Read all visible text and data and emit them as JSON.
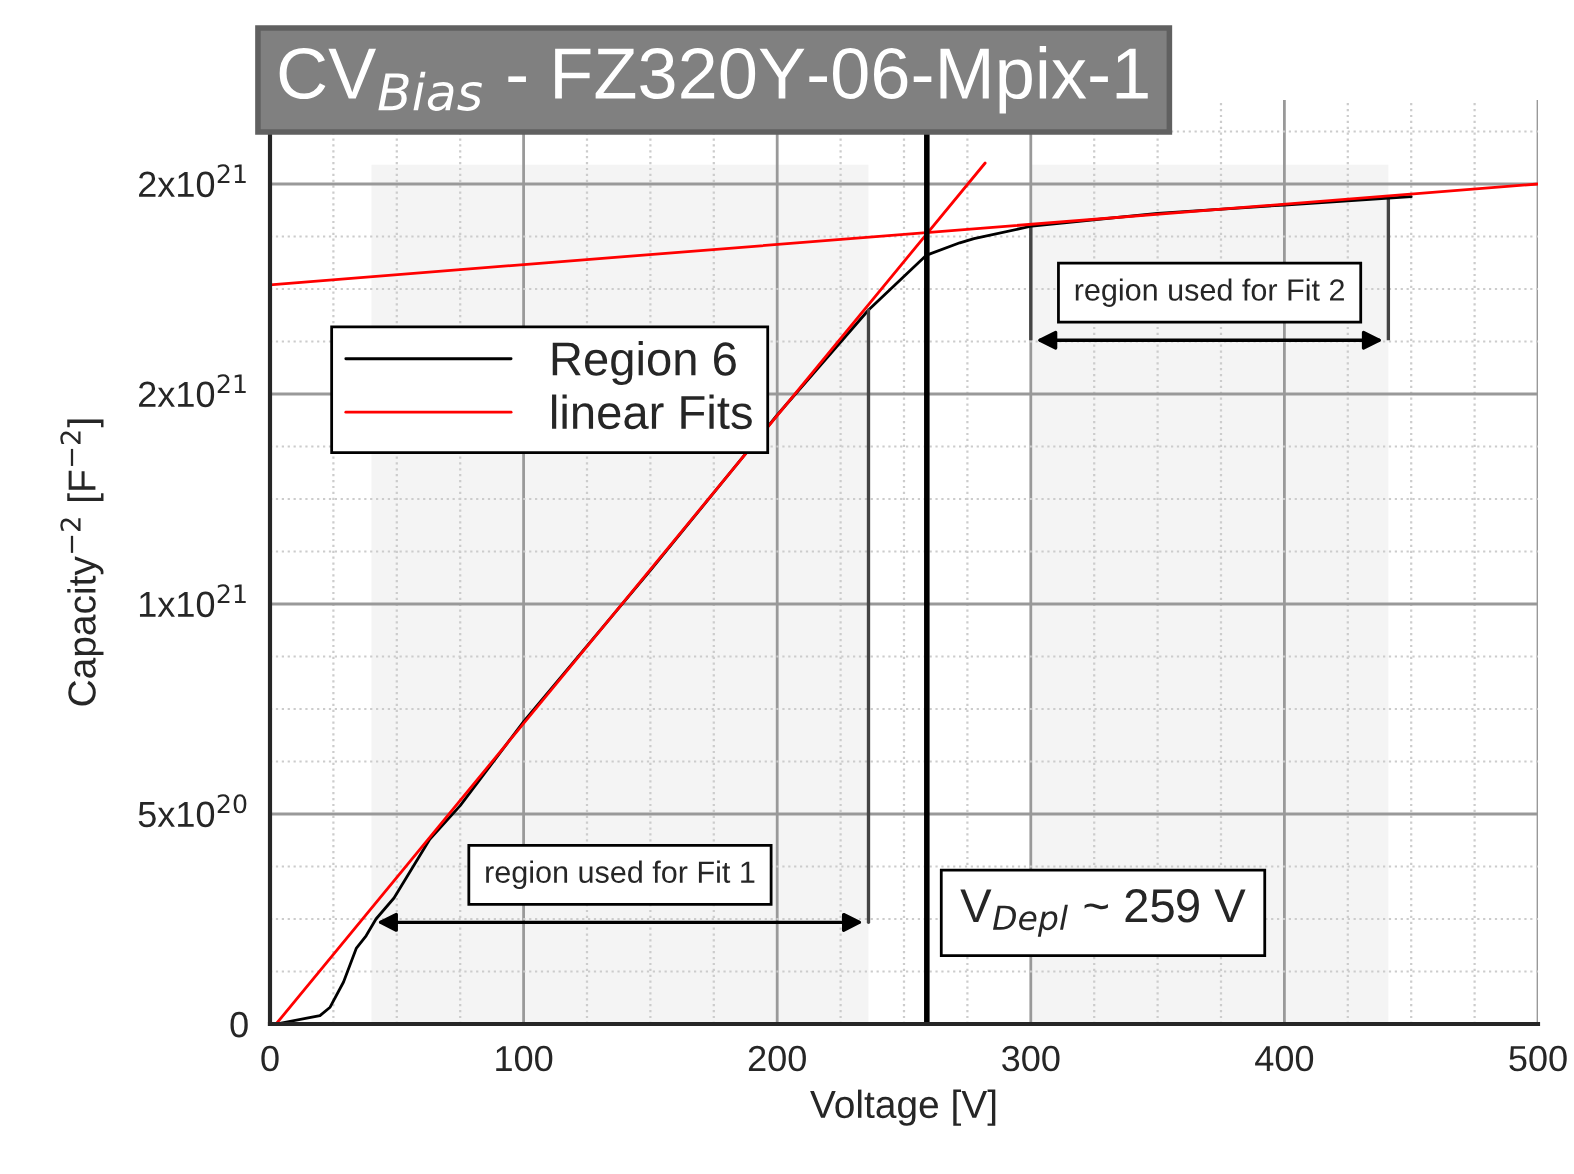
{
  "chart_data": {
    "type": "line",
    "title": "CV$_{Bias}$ - FZ320Y-06-Mpix-1",
    "xlabel": "Voltage [V]",
    "ylabel": "Capacity$^{−2}$ [F$^{−2}$]",
    "series": [
      {
        "name": "Region 6",
        "color": "#000000",
        "x": [
          2.4,
          19.7,
          23.7,
          29,
          34,
          37.9,
          41.8,
          48.9,
          63,
          75,
          100,
          150,
          200,
          236,
          258.7,
          272,
          277.6,
          300.5,
          350,
          400,
          450
        ],
        "values": [
          0,
          2e+19,
          4e+19,
          1e+20,
          1.8e+20,
          2.1e+20,
          2.5e+20,
          3e+20,
          4.4e+20,
          5.2e+20,
          7.2e+20,
          1.08e+21,
          1.45e+21,
          1.7e+21,
          1.83e+21,
          1.86e+21,
          1.87e+21,
          1.9e+21,
          1.93e+21,
          1.95e+21,
          1.97e+21
        ]
      },
      {
        "name": "linear Fits",
        "color": "#ff0000",
        "x": [
          2.4,
          282
        ],
        "values": [
          0,
          2.05e+21
        ]
      },
      {
        "color": "#ff0000",
        "x": [
          0,
          500
        ],
        "values": [
          1.76e+21,
          2e+21
        ]
      }
    ],
    "xlim": [
      0,
      500
    ],
    "xticks": [
      0,
      100,
      200,
      300,
      400,
      500
    ],
    "ylim": [
      0,
      2.2e+21
    ],
    "yticks": [
      0,
      {
        "value": 5e+20,
        "label": "5x10$^{20}$"
      },
      {
        "value": 1e+21,
        "label": "1x10$^{21}$"
      },
      {
        "value": 1.5e+21,
        "label": "2x10$^{21}$"
      },
      {
        "value": 2e+21,
        "label": "2x10$^{21}$"
      }
    ],
    "ref_lines": [
      {
        "axis": "x",
        "value": 259,
        "label": "V$_{Depl}$ ~ 259 V",
        "color": "#000000"
      },
      {
        "axis": "x",
        "value": 236,
        "color": "#444444"
      }
    ],
    "bands": [
      {
        "axis": "x",
        "from": 40,
        "to": 236,
        "label": "region used for Fit 1",
        "color": "#f4f4f4"
      },
      {
        "axis": "x",
        "from": 300,
        "to": 441,
        "label": "region used for Fit 2",
        "color": "#f4f4f4"
      }
    ],
    "grid": true,
    "legend": "top left",
    "marker": "none",
    "line_style": "solid"
  }
}
